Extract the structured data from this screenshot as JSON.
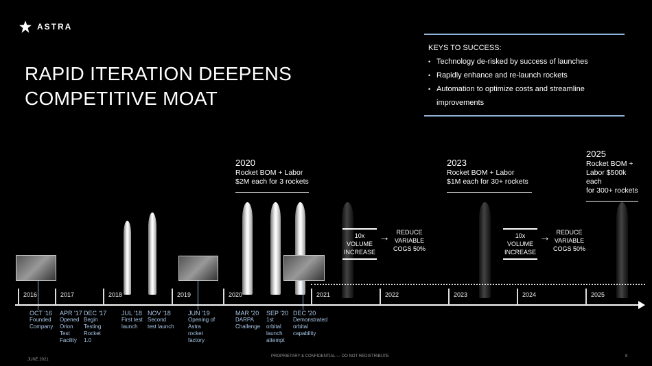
{
  "brand": "ASTRA",
  "title_lines": [
    "RAPID ITERATION DEEPENS",
    "COMPETITIVE MOAT"
  ],
  "keys": {
    "heading": "KEYS TO SUCCESS:",
    "items": [
      "Technology de-risked by success of launches",
      "Rapidly enhance and re-launch rockets",
      "Automation to optimize costs and streamline improvements"
    ]
  },
  "milestones": [
    {
      "year": "2020",
      "lines": [
        "Rocket BOM + Labor",
        "$2M each for 3 rockets"
      ]
    },
    {
      "year": "2023",
      "lines": [
        "Rocket BOM + Labor",
        "$1M each for 30+ rockets"
      ]
    },
    {
      "year": "2025",
      "lines": [
        "Rocket BOM +",
        "Labor $500k each",
        "for 300+ rockets"
      ]
    }
  ],
  "volume": {
    "left": [
      "10x VOLUME",
      "INCREASE"
    ],
    "right": [
      "REDUCE",
      "VARIABLE",
      "COGS 50%"
    ]
  },
  "years": [
    "2016",
    "2017",
    "2018",
    "2019",
    "2020",
    "2021",
    "2022",
    "2023",
    "2024",
    "2025"
  ],
  "events": [
    {
      "date": "OCT '16",
      "text": "Founded Company"
    },
    {
      "date": "APR '17",
      "text": "Opened Orion Test Facility"
    },
    {
      "date": "DEC '17",
      "text": "Begin Testing Rocket 1.0"
    },
    {
      "date": "JUL '18",
      "text": "First test launch"
    },
    {
      "date": "NOV '18",
      "text": "Second test launch"
    },
    {
      "date": "JUN '19",
      "text": "Opening of Astra rocket factory"
    },
    {
      "date": "MAR '20",
      "text": "DARPA Challenge"
    },
    {
      "date": "SEP '20",
      "text": "1st orbital launch attempt"
    },
    {
      "date": "DEC '20",
      "text": "Demonstrated orbital capability"
    }
  ],
  "footer": {
    "date": "JUNE 2021",
    "confidential": "PROPRIETARY & CONFIDENTIAL — DO NOT REDISTRIBUTE",
    "page": "8"
  }
}
